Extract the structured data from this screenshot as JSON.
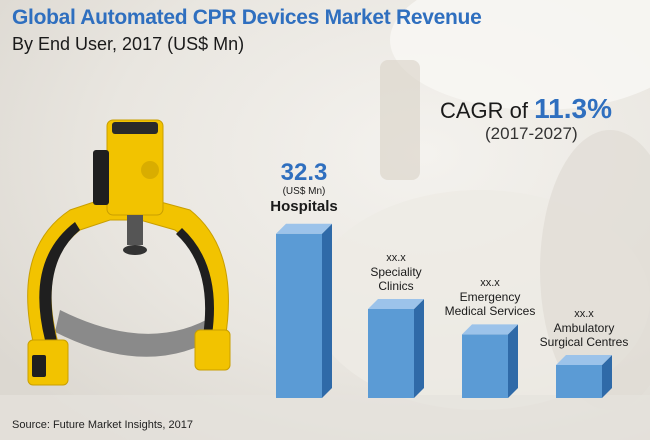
{
  "header": {
    "title": "Global Automated CPR Devices Market Revenue",
    "subtitle": "By End User, 2017 (US$ Mn)"
  },
  "cagr": {
    "prefix": "CAGR of ",
    "value": "11.3%",
    "period": "(2017-2027)"
  },
  "source": "Source: Future Market Insights, 2017",
  "colors": {
    "title": "#2f6fbf",
    "bar_front": "#5b9bd5",
    "bar_side": "#2f6aa8",
    "bar_top": "#9cc3ea",
    "device_yellow": "#f2c300"
  },
  "chart_data": {
    "type": "bar",
    "title": "Global Automated CPR Devices Market Revenue",
    "subtitle": "By End User, 2017 (US$ Mn)",
    "categories": [
      "Hospitals",
      "Speciality Clinics",
      "Emergency Medical Services",
      "Ambulatory Surgical Centres"
    ],
    "category_lines": [
      [
        "Hospitals"
      ],
      [
        "Speciality",
        "Clinics"
      ],
      [
        "Emergency",
        "Medical Services"
      ],
      [
        "Ambulatory",
        "Surgical Centres"
      ]
    ],
    "value_labels": [
      "32.3",
      "xx.x",
      "xx.x",
      "xx.x"
    ],
    "unit_label": "(US$ Mn)",
    "values": [
      32.3,
      17.5,
      12.5,
      6.5
    ],
    "ylim": [
      0,
      35
    ],
    "grid": false,
    "legend": "none"
  }
}
